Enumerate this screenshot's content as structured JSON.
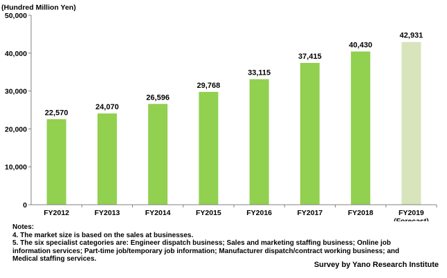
{
  "chart_data": {
    "type": "bar",
    "unit_label": "(Hundred Million Yen)",
    "categories": [
      "FY2012",
      "FY2013",
      "FY2014",
      "FY2015",
      "FY2016",
      "FY2017",
      "FY2018",
      "FY2019"
    ],
    "category_sublabels": [
      "",
      "",
      "",
      "",
      "",
      "",
      "",
      "(Forecast)"
    ],
    "values": [
      22570,
      24070,
      26596,
      29768,
      33115,
      37415,
      40430,
      42931
    ],
    "value_labels": [
      "22,570",
      "24,070",
      "26,596",
      "29,768",
      "33,115",
      "37,415",
      "40,430",
      "42,931"
    ],
    "yticks": [
      0,
      10000,
      20000,
      30000,
      40000,
      50000
    ],
    "ytick_labels": [
      "0",
      "10,000",
      "20,000",
      "30,000",
      "40,000",
      "50,000"
    ],
    "ylim": [
      0,
      50000
    ],
    "grid": false,
    "colors": {
      "actual": "#92d050",
      "forecast": "#d8e4bc"
    }
  },
  "notes": {
    "heading": "Notes:",
    "lines": [
      "4. The market size is based on the sales at businesses.",
      "5. The six specialist categories are: Engineer dispatch business; Sales and marketing staffing business; Online job",
      "information services; Part-time job/temporary job information; Manufacturer dispatch/contract working business; and",
      "Medical staffing services."
    ]
  },
  "source": "Survey by Yano Research Institute"
}
